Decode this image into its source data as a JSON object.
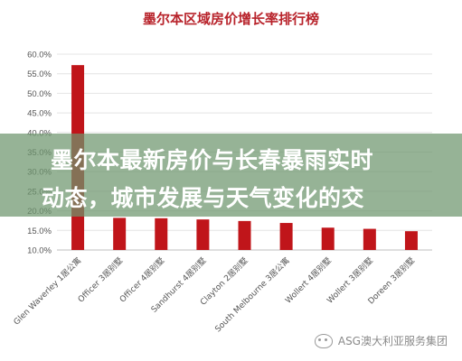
{
  "chart_data": {
    "type": "bar",
    "title": "墨尔本区域房价增长率排行榜",
    "xlabel": "",
    "ylabel": "",
    "ylim": [
      10,
      60
    ],
    "yticks": [
      "10.0%",
      "15.0%",
      "20.0%",
      "25.0%",
      "30.0%",
      "35.0%",
      "40.0%",
      "45.0%",
      "50.0%",
      "55.0%",
      "60.0%"
    ],
    "categories": [
      "Glen Waverley 1居公寓",
      "Officer 3居别墅",
      "Officer 4居别墅",
      "Sandhurst 4居别墅",
      "Clayton 2居别墅",
      "South Melbourne 3居公寓",
      "Wollert 4居别墅",
      "Wollert 3居别墅",
      "Doreen 3居别墅"
    ],
    "values": [
      57.2,
      18.2,
      18.1,
      17.8,
      17.4,
      16.9,
      15.7,
      15.4,
      14.8
    ],
    "bar_color": "#c0151a",
    "grid": true
  },
  "banner": {
    "line1": "墨尔本最新房价与长春暴雨实时",
    "line2": "动态，城市发展与天气变化的交"
  },
  "watermark": {
    "text": "ASG澳大利亚服务集团",
    "icon": "wechat-icon"
  }
}
